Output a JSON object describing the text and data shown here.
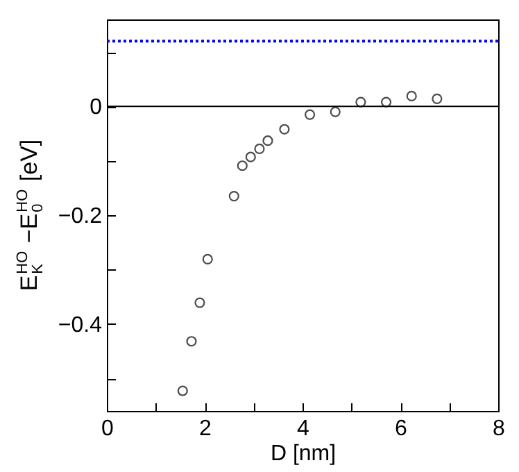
{
  "chart_data": {
    "type": "scatter",
    "xlabel": "D [nm]",
    "ylabel": "E$_{K}$$^{HO}$ −E$_{0}$$^{HO}$  [eV]",
    "x": [
      1.55,
      1.73,
      1.9,
      2.06,
      2.6,
      2.77,
      2.94,
      3.12,
      3.29,
      3.63,
      4.15,
      4.67,
      5.19,
      5.71,
      6.23,
      6.75
    ],
    "series": [
      {
        "color": "#000000",
        "values": [
          -0.523,
          -0.432,
          -0.361,
          -0.281,
          -0.165,
          -0.109,
          -0.093,
          -0.078,
          -0.063,
          -0.042,
          -0.015,
          -0.01,
          0.008,
          0.008,
          0.019,
          0.014
        ]
      }
    ],
    "marker": "circle",
    "xlim": [
      0,
      8
    ],
    "ylim": [
      -0.56,
      0.16
    ],
    "xticks": [
      0,
      {
        "value": 1,
        "label": null
      },
      2,
      {
        "value": 3,
        "label": null
      },
      4,
      {
        "value": 5,
        "label": null
      },
      6,
      {
        "value": 7,
        "label": null
      },
      8
    ],
    "yticks": [
      {
        "value": -0.5,
        "label": null
      },
      {
        "value": -0.4,
        "label": "−0.4"
      },
      {
        "value": -0.3,
        "label": null
      },
      {
        "value": -0.2,
        "label": "−0.2"
      },
      {
        "value": -0.1,
        "label": null
      },
      0,
      {
        "value": 0.1,
        "label": null
      }
    ],
    "ref_lines": [
      {
        "axis": "y",
        "value": 0,
        "color": "#000000",
        "line_style": "solid"
      },
      {
        "axis": "y",
        "value": 0.12,
        "color": "#0000ff",
        "line_style": "dotted"
      }
    ],
    "grid": false
  }
}
